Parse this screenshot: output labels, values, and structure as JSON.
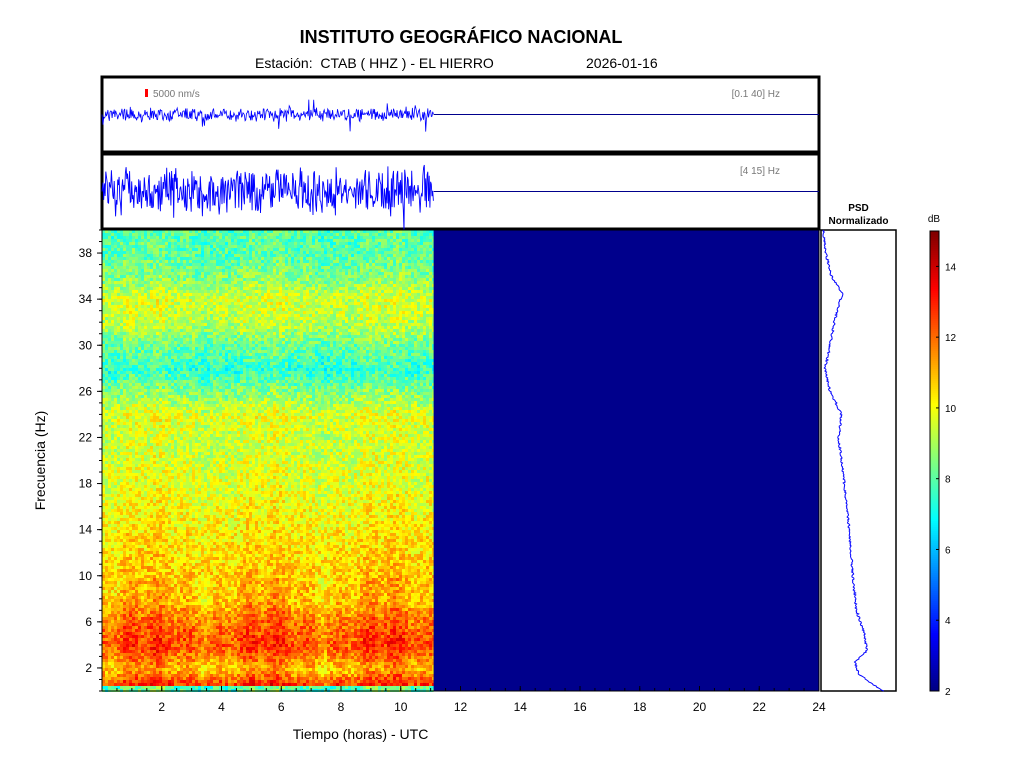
{
  "header": {
    "title": "INSTITUTO GEOGRÁFICO NACIONAL",
    "station": "Estación:  CTAB ( HHZ ) - EL HIERRO",
    "date": "2026-01-16"
  },
  "colors": {
    "trace": "#0000ff",
    "background_spec": "#00008c",
    "scale_marker": "#ff0000"
  },
  "chart_data": [
    {
      "type": "line",
      "name": "seismogram-broadband",
      "band_label": "[0.1 40] Hz",
      "scale_label": "5000 nm/s",
      "xlim": [
        0,
        24
      ],
      "data_end_hour": 11.1
    },
    {
      "type": "line",
      "name": "seismogram-filtered",
      "band_label": "[4 15] Hz",
      "scale_label": "",
      "xlim": [
        0,
        24
      ],
      "data_end_hour": 11.1
    },
    {
      "type": "heatmap",
      "name": "spectrogram",
      "xlabel": "Tiempo (horas) - UTC",
      "ylabel": "Frecuencia  (Hz)",
      "xlim": [
        0,
        24
      ],
      "ylim": [
        0,
        40
      ],
      "xticks": [
        2,
        4,
        6,
        8,
        10,
        12,
        14,
        16,
        18,
        20,
        22,
        24
      ],
      "yticks": [
        2,
        6,
        10,
        14,
        18,
        22,
        26,
        30,
        34,
        38
      ],
      "data_end_hour": 11.1,
      "colorbar": {
        "label": "dB",
        "ticks": [
          2,
          4,
          6,
          8,
          10,
          12,
          14
        ],
        "range": [
          2,
          15
        ]
      },
      "approx_level_db_by_freq": [
        {
          "hz": 0.5,
          "db": 13
        },
        {
          "hz": 2,
          "db": 11
        },
        {
          "hz": 4,
          "db": 12.5
        },
        {
          "hz": 6,
          "db": 12
        },
        {
          "hz": 8,
          "db": 11
        },
        {
          "hz": 10,
          "db": 10.8
        },
        {
          "hz": 14,
          "db": 10.3
        },
        {
          "hz": 18,
          "db": 9.8
        },
        {
          "hz": 22,
          "db": 9.5
        },
        {
          "hz": 24,
          "db": 9.8
        },
        {
          "hz": 26,
          "db": 8.6
        },
        {
          "hz": 28,
          "db": 7.5
        },
        {
          "hz": 30,
          "db": 8.2
        },
        {
          "hz": 32,
          "db": 9.3
        },
        {
          "hz": 34,
          "db": 9.6
        },
        {
          "hz": 36,
          "db": 8.6
        },
        {
          "hz": 38,
          "db": 8.0
        },
        {
          "hz": 40,
          "db": 8.0
        }
      ]
    },
    {
      "type": "line",
      "name": "psd-normalizado",
      "title": "PSD\nNormalizado",
      "ylim": [
        0,
        40
      ],
      "psd": [
        {
          "hz": 0,
          "v": 0.85
        },
        {
          "hz": 0.5,
          "v": 0.72
        },
        {
          "hz": 1.5,
          "v": 0.5
        },
        {
          "hz": 2.5,
          "v": 0.45
        },
        {
          "hz": 3.5,
          "v": 0.62
        },
        {
          "hz": 5,
          "v": 0.58
        },
        {
          "hz": 7,
          "v": 0.47
        },
        {
          "hz": 10,
          "v": 0.42
        },
        {
          "hz": 14,
          "v": 0.37
        },
        {
          "hz": 18,
          "v": 0.3
        },
        {
          "hz": 22,
          "v": 0.22
        },
        {
          "hz": 24,
          "v": 0.26
        },
        {
          "hz": 26,
          "v": 0.1
        },
        {
          "hz": 28,
          "v": 0.03
        },
        {
          "hz": 30,
          "v": 0.1
        },
        {
          "hz": 32,
          "v": 0.16
        },
        {
          "hz": 34.5,
          "v": 0.27
        },
        {
          "hz": 36,
          "v": 0.12
        },
        {
          "hz": 38,
          "v": 0.04
        },
        {
          "hz": 40,
          "v": 0.0
        }
      ]
    }
  ]
}
